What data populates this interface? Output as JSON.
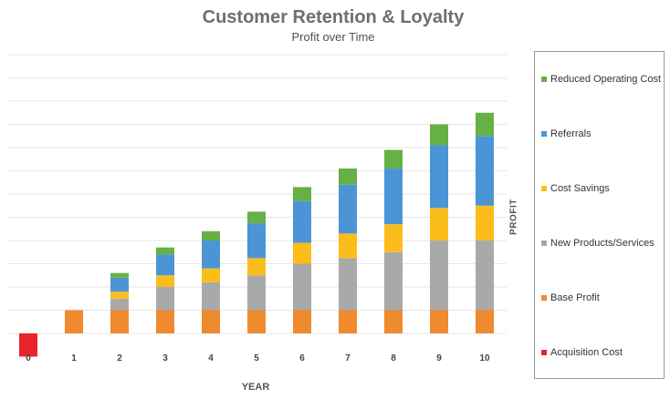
{
  "chart_data": {
    "type": "bar",
    "stacked": true,
    "title": "Customer Retention & Loyalty",
    "subtitle": "Profit over Time",
    "xlabel": "YEAR",
    "ylabel": "PROFIT",
    "categories": [
      "0",
      "1",
      "2",
      "3",
      "4",
      "5",
      "6",
      "7",
      "8",
      "9",
      "10"
    ],
    "ylim": [
      -5,
      60
    ],
    "grid": true,
    "legend_position": "right",
    "series": [
      {
        "name": "Acquisition Cost",
        "color": "#e8262a",
        "values": [
          -5,
          0,
          0,
          0,
          0,
          0,
          0,
          0,
          0,
          0,
          0
        ]
      },
      {
        "name": "Base Profit",
        "color": "#f08a2e",
        "values": [
          0,
          5,
          5,
          5,
          5,
          5,
          5,
          5,
          5,
          5,
          5
        ]
      },
      {
        "name": "New Products/Services",
        "color": "#a9a9a9",
        "values": [
          0,
          0,
          2.5,
          5,
          6,
          7.5,
          10,
          11.2,
          12.5,
          15,
          15
        ]
      },
      {
        "name": "Cost Savings",
        "color": "#fbbd1c",
        "values": [
          0,
          0,
          1.5,
          2.5,
          3,
          3.7,
          4.5,
          5.3,
          6,
          7,
          7.5
        ]
      },
      {
        "name": "Referrals",
        "color": "#4b95d6",
        "values": [
          0,
          0,
          3,
          4.5,
          6,
          7.5,
          9,
          10.5,
          12,
          13.5,
          15
        ]
      },
      {
        "name": "Reduced Operating Cost",
        "color": "#66b045",
        "values": [
          0,
          0,
          1,
          1.5,
          2,
          2.5,
          3,
          3.5,
          4,
          4.5,
          5
        ]
      }
    ]
  }
}
